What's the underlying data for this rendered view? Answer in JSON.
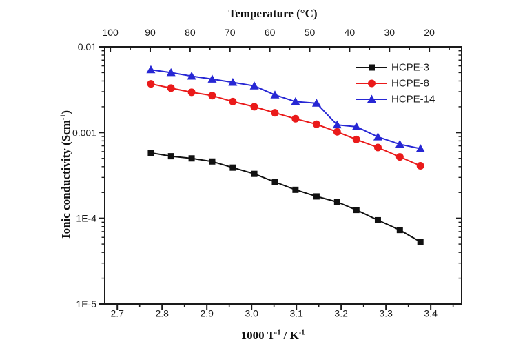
{
  "chart": {
    "top_title": "Temperature (°C)",
    "x_title": {
      "t1": "1000 T",
      "s1": "-1",
      "t2": " / K",
      "s2": "-1"
    },
    "y_title": {
      "t1": "Ionic conductivity (Scm",
      "s1": "-1",
      "t2": ")"
    }
  },
  "colors": {
    "axis": "#1a1a1a",
    "tick_label": "#1a1a1a",
    "background": "#ffffff",
    "hcpe3": "#111111",
    "hcpe8": "#ea1a1a",
    "hcpe14": "#2727d4"
  },
  "chart_data": {
    "type": "line",
    "title": "Temperature (°C)",
    "xlabel": "1000 T⁻¹ / K⁻¹",
    "ylabel": "Ionic conductivity (Scm⁻¹)",
    "grid": false,
    "x_axis": {
      "range": [
        2.672,
        3.469
      ],
      "ticks": [
        2.7,
        2.8,
        2.9,
        3.0,
        3.1,
        3.2,
        3.3,
        3.4
      ],
      "tick_labels": [
        "2.7",
        "2.8",
        "2.9",
        "3.0",
        "3.1",
        "3.2",
        "3.3",
        "3.4"
      ],
      "minor_offset": 0.05
    },
    "top_axis": {
      "label": "Temperature (°C)",
      "range": [
        101.4,
        11.9
      ],
      "ticks": [
        100,
        90,
        80,
        70,
        60,
        50,
        40,
        30,
        20
      ],
      "minor_offset": -5
    },
    "y_axis": {
      "scale": "log",
      "range": [
        1e-05,
        0.01
      ],
      "ticks": [
        0.01,
        0.001,
        0.0001,
        1e-05
      ],
      "tick_labels": [
        "0.01",
        "0.001",
        "1E-4",
        "1E-5"
      ]
    },
    "x": [
      2.775,
      2.82,
      2.866,
      2.912,
      2.958,
      3.006,
      3.052,
      3.098,
      3.145,
      3.191,
      3.234,
      3.282,
      3.331,
      3.377
    ],
    "series": [
      {
        "name": "HCPE-3",
        "color": "#111111",
        "marker": "square",
        "values": [
          0.00058,
          0.00053,
          0.0005,
          0.00046,
          0.00039,
          0.00033,
          0.000265,
          0.000215,
          0.00018,
          0.000155,
          0.000125,
          9.5e-05,
          7.3e-05,
          5.3e-05
        ]
      },
      {
        "name": "HCPE-8",
        "color": "#ea1a1a",
        "marker": "circle",
        "values": [
          0.0037,
          0.0033,
          0.00295,
          0.0027,
          0.0023,
          0.002,
          0.0017,
          0.00145,
          0.00125,
          0.00102,
          0.00083,
          0.00067,
          0.00052,
          0.00041
        ]
      },
      {
        "name": "HCPE-14",
        "color": "#2727d4",
        "marker": "triangle",
        "values": [
          0.0054,
          0.005,
          0.00455,
          0.0042,
          0.00385,
          0.0035,
          0.00275,
          0.0023,
          0.0022,
          0.00123,
          0.00117,
          0.00089,
          0.00073,
          0.00065
        ]
      }
    ],
    "legend": {
      "position": "upper-right",
      "labels": [
        "HCPE-3",
        "HCPE-8",
        "HCPE-14"
      ]
    }
  }
}
